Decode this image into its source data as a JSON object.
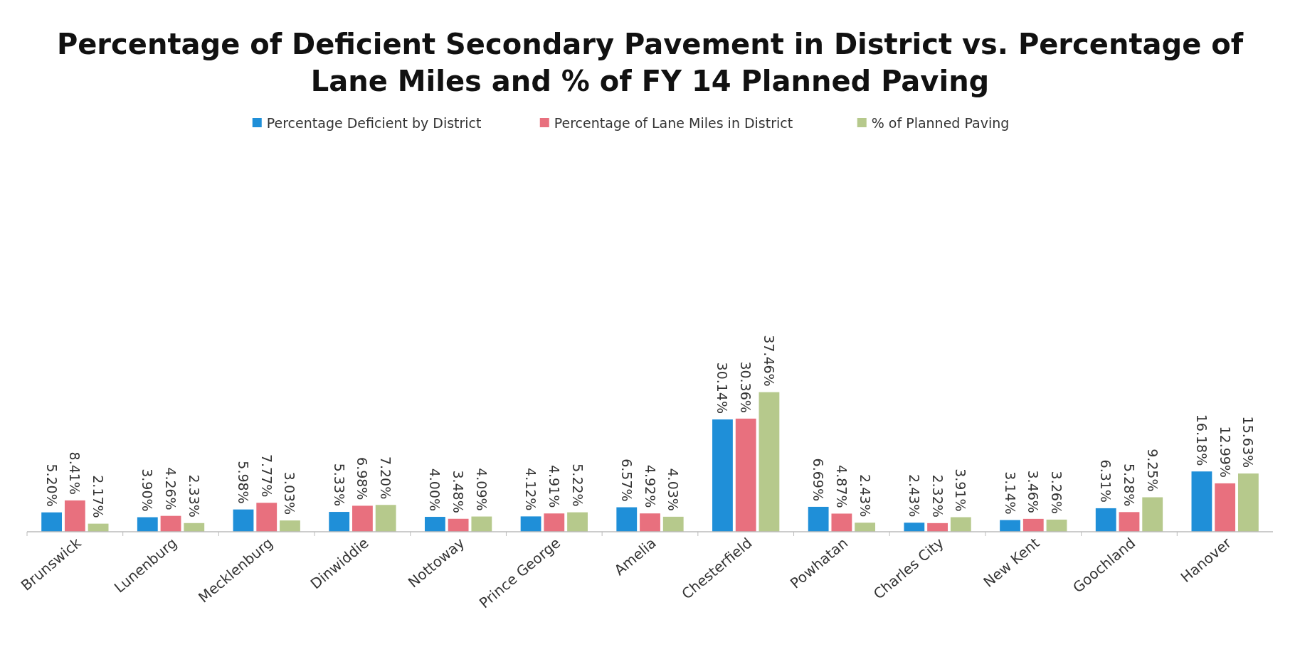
{
  "chart_data": {
    "type": "bar",
    "title": "Percentage of Deficient Secondary Pavement in District vs. Percentage of Lane Miles and % of FY 14 Planned Paving",
    "categories": [
      "Brunswick",
      "Lunenburg",
      "Mecklenburg",
      "Dinwiddie",
      "Nottoway",
      "Prince George",
      "Amelia",
      "Chesterfield",
      "Powhatan",
      "Charles City",
      "New Kent",
      "Goochland",
      "Hanover"
    ],
    "series": [
      {
        "name": "Percentage Deficient by District",
        "color": "#1f8fd8",
        "values": [
          5.2,
          3.9,
          5.98,
          5.33,
          4.0,
          4.12,
          6.57,
          30.14,
          6.69,
          2.43,
          3.14,
          6.31,
          16.18
        ],
        "value_labels": [
          "5.20%",
          "3.90%",
          "5.98%",
          "5.33%",
          "4.00%",
          "4.12%",
          "6.57%",
          "30.14%",
          "6.69%",
          "2.43%",
          "3.14%",
          "6.31%",
          "16.18%"
        ]
      },
      {
        "name": "Percentage of Lane Miles in District",
        "color": "#e8707e",
        "values": [
          8.41,
          4.26,
          7.77,
          6.98,
          3.48,
          4.91,
          4.92,
          30.36,
          4.87,
          2.32,
          3.46,
          5.28,
          12.99
        ],
        "value_labels": [
          "8.41%",
          "4.26%",
          "7.77%",
          "6.98%",
          "3.48%",
          "4.91%",
          "4.92%",
          "30.36%",
          "4.87%",
          "2.32%",
          "3.46%",
          "5.28%",
          "12.99%"
        ]
      },
      {
        "name": "% of Planned Paving",
        "color": "#b6c98c",
        "values": [
          2.17,
          2.33,
          3.03,
          7.2,
          4.09,
          5.22,
          4.03,
          37.46,
          2.43,
          3.91,
          3.26,
          9.25,
          15.63
        ],
        "value_labels": [
          "2.17%",
          "2.33%",
          "3.03%",
          "7.20%",
          "4.09%",
          "5.22%",
          "4.03%",
          "37.46%",
          "2.43%",
          "3.91%",
          "3.26%",
          "9.25%",
          "15.63%"
        ]
      }
    ],
    "legend": "top"
  }
}
